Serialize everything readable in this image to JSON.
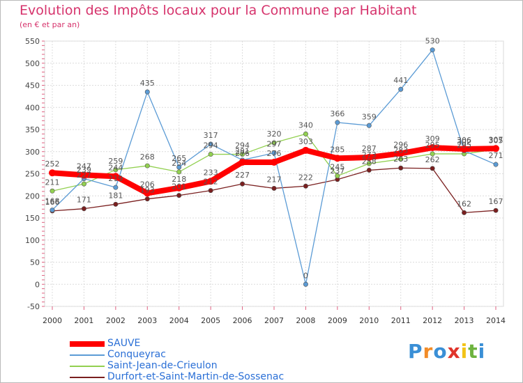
{
  "chart_data": {
    "type": "line",
    "title": "Evolution des Impôts locaux pour la Commune par Habitant",
    "subtitle": "(en € et par an)",
    "x": [
      2000,
      2001,
      2002,
      2003,
      2004,
      2005,
      2006,
      2007,
      2008,
      2009,
      2010,
      2011,
      2012,
      2013,
      2014
    ],
    "ylim": [
      -50,
      550
    ],
    "yticks": [
      -50,
      0,
      50,
      100,
      150,
      200,
      250,
      300,
      350,
      400,
      450,
      500,
      550
    ],
    "grid": true,
    "legend_position": "bottom-left",
    "series": [
      {
        "name": "SAUVE",
        "color": "#ff0000",
        "values": [
          252,
          247,
          244,
          206,
          218,
          233,
          276,
          276,
          303,
          285,
          287,
          296,
          309,
          306,
          307
        ]
      },
      {
        "name": "Conqueyrac",
        "color": "#5b9bd5",
        "values": [
          168,
          239,
          219,
          435,
          265,
          317,
          281,
          297,
          0,
          366,
          359,
          441,
          530,
          302,
          271
        ]
      },
      {
        "name": "Saint-Jean-de-Crieulon",
        "color": "#92d050",
        "values": [
          211,
          227,
          259,
          268,
          254,
          294,
          294,
          320,
          340,
          245,
          273,
          283,
          295,
          295,
          305
        ]
      },
      {
        "name": "Durfort-et-Saint-Martin-de-Sossenac",
        "color": "#7a1f1f",
        "values": [
          166,
          171,
          181,
          193,
          201,
          212,
          227,
          217,
          222,
          237,
          258,
          263,
          262,
          162,
          167
        ]
      }
    ]
  },
  "logo": {
    "text": "Proxiti",
    "colors": [
      "#3a8fd6",
      "#f28c28",
      "#3a8fd6",
      "#e0342b",
      "#f2c318",
      "#6db33f",
      "#3a8fd6"
    ]
  }
}
